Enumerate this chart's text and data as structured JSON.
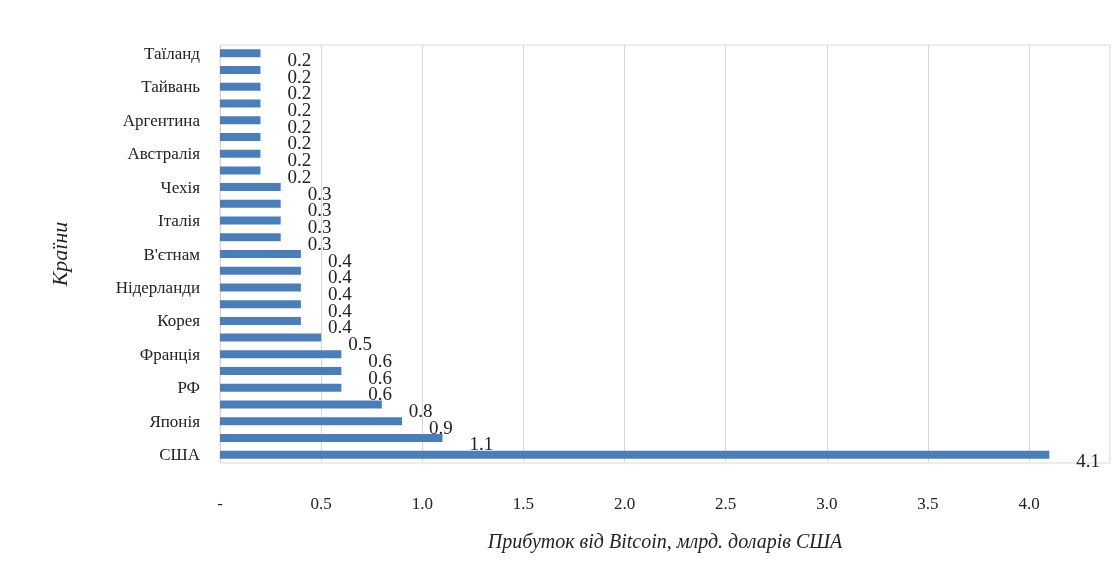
{
  "chart_data": {
    "type": "bar",
    "orientation": "horizontal",
    "xlabel": "Прибуток від Bitcoin, млрд. доларів США",
    "ylabel": "Країни",
    "categories": [
      "Таїланд",
      null,
      "Тайвань",
      null,
      "Аргентина",
      null,
      "Австралія",
      null,
      "Чехія",
      null,
      "Італія",
      null,
      "В'єтнам",
      null,
      "Нідерланди",
      null,
      "Корея",
      null,
      "Франція",
      null,
      "РФ",
      null,
      "Японія",
      null,
      "США"
    ],
    "values": [
      0.2,
      0.2,
      0.2,
      0.2,
      0.2,
      0.2,
      0.2,
      0.2,
      0.3,
      0.3,
      0.3,
      0.3,
      0.4,
      0.4,
      0.4,
      0.4,
      0.4,
      0.5,
      0.6,
      0.6,
      0.6,
      0.8,
      0.9,
      1.1,
      4.1
    ],
    "color": "#4a7ebb",
    "data_labels": true,
    "grid": "x",
    "xlim": [
      0,
      4.4
    ],
    "xticks": [
      {
        "value": 0,
        "label": "-"
      },
      0.5,
      {
        "value": 1,
        "label": "1.0"
      },
      1.5,
      {
        "value": 2,
        "label": "2.0"
      },
      2.5,
      {
        "value": 3,
        "label": "3.0"
      },
      3.5,
      {
        "value": 4,
        "label": "4.0"
      }
    ]
  }
}
